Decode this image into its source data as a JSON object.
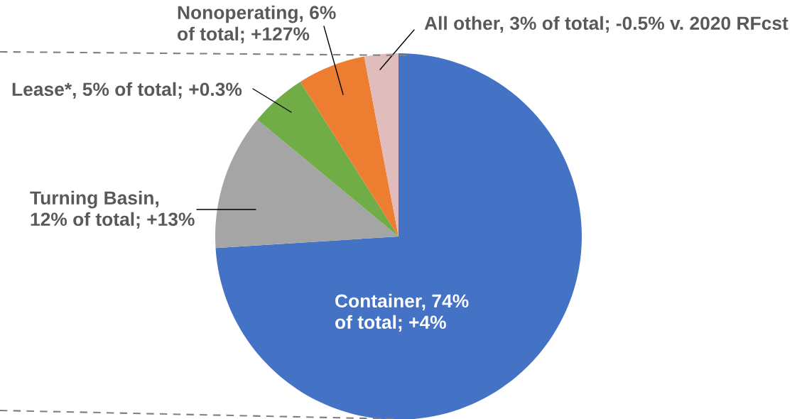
{
  "chart_data": {
    "type": "pie",
    "categories": [
      "Container, 74%\nof total; +4%",
      "Turning Basin,\n12% of total; +13%",
      "Lease*, 5% of total; +0.3%",
      "Nonoperating, 6%\nof total; +127%",
      "All other, 3% of total; -0.5% v. 2020 RFcst"
    ],
    "values": [
      74,
      12,
      5,
      6,
      3
    ],
    "colors": [
      "#4472c4",
      "#a5a5a5",
      "#70ad47",
      "#ed7d31",
      "#e0bcbc"
    ]
  }
}
